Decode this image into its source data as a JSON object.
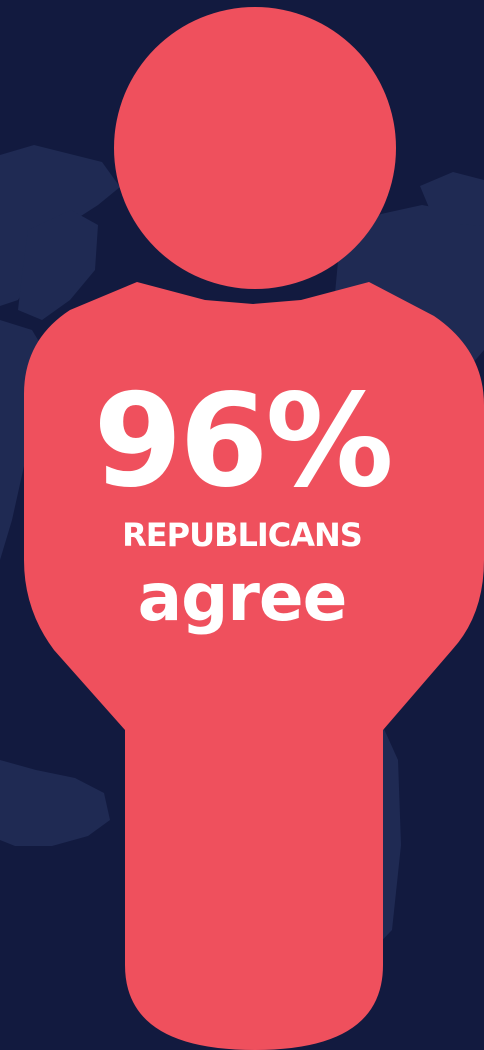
{
  "colors": {
    "background": "#121a3f",
    "map_land": "#1f2a53",
    "figure": "#ef505d",
    "text": "#ffffff"
  },
  "figure": {
    "icon": "person-icon"
  },
  "stat": {
    "percent": "96%",
    "group": "REPUBLICANS",
    "verb": "agree"
  }
}
